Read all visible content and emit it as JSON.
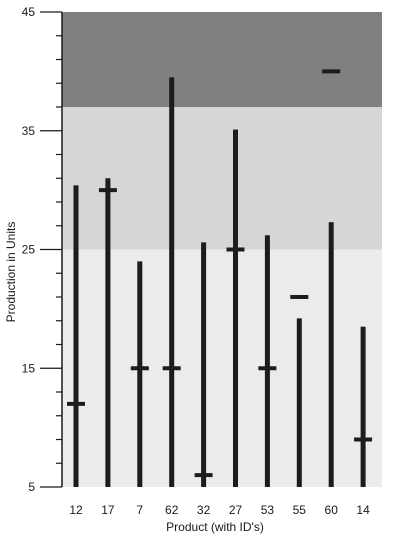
{
  "chart_data": {
    "type": "bar",
    "subtype": "range-bar-with-target-marker",
    "xlabel": "Product (with ID's)",
    "ylabel": "Production in Units",
    "ylim": [
      5,
      45
    ],
    "y_ticks": [
      "5",
      "15",
      "25",
      "35",
      "45"
    ],
    "categories": [
      "12",
      "17",
      "7",
      "62",
      "32",
      "27",
      "53",
      "55",
      "60",
      "14"
    ],
    "series": [
      {
        "values": [
          30.4,
          31.0,
          24.0,
          39.5,
          25.6,
          35.1,
          26.2,
          19.2,
          27.3,
          18.5
        ]
      },
      {
        "values": [
          12,
          30,
          15,
          15,
          6,
          25,
          15,
          21,
          40,
          9
        ]
      }
    ],
    "bands": [
      {
        "from": 5,
        "to": 25,
        "color": "#ebebeb"
      },
      {
        "from": 25,
        "to": 37,
        "color": "#d6d6d6"
      },
      {
        "from": 37,
        "to": 45,
        "color": "#808080"
      }
    ],
    "colors": {
      "bar": "#1c1c1c",
      "marker": "#1c1c1c",
      "axis": "#1a1a1a"
    },
    "grid": false,
    "legend": "none"
  }
}
